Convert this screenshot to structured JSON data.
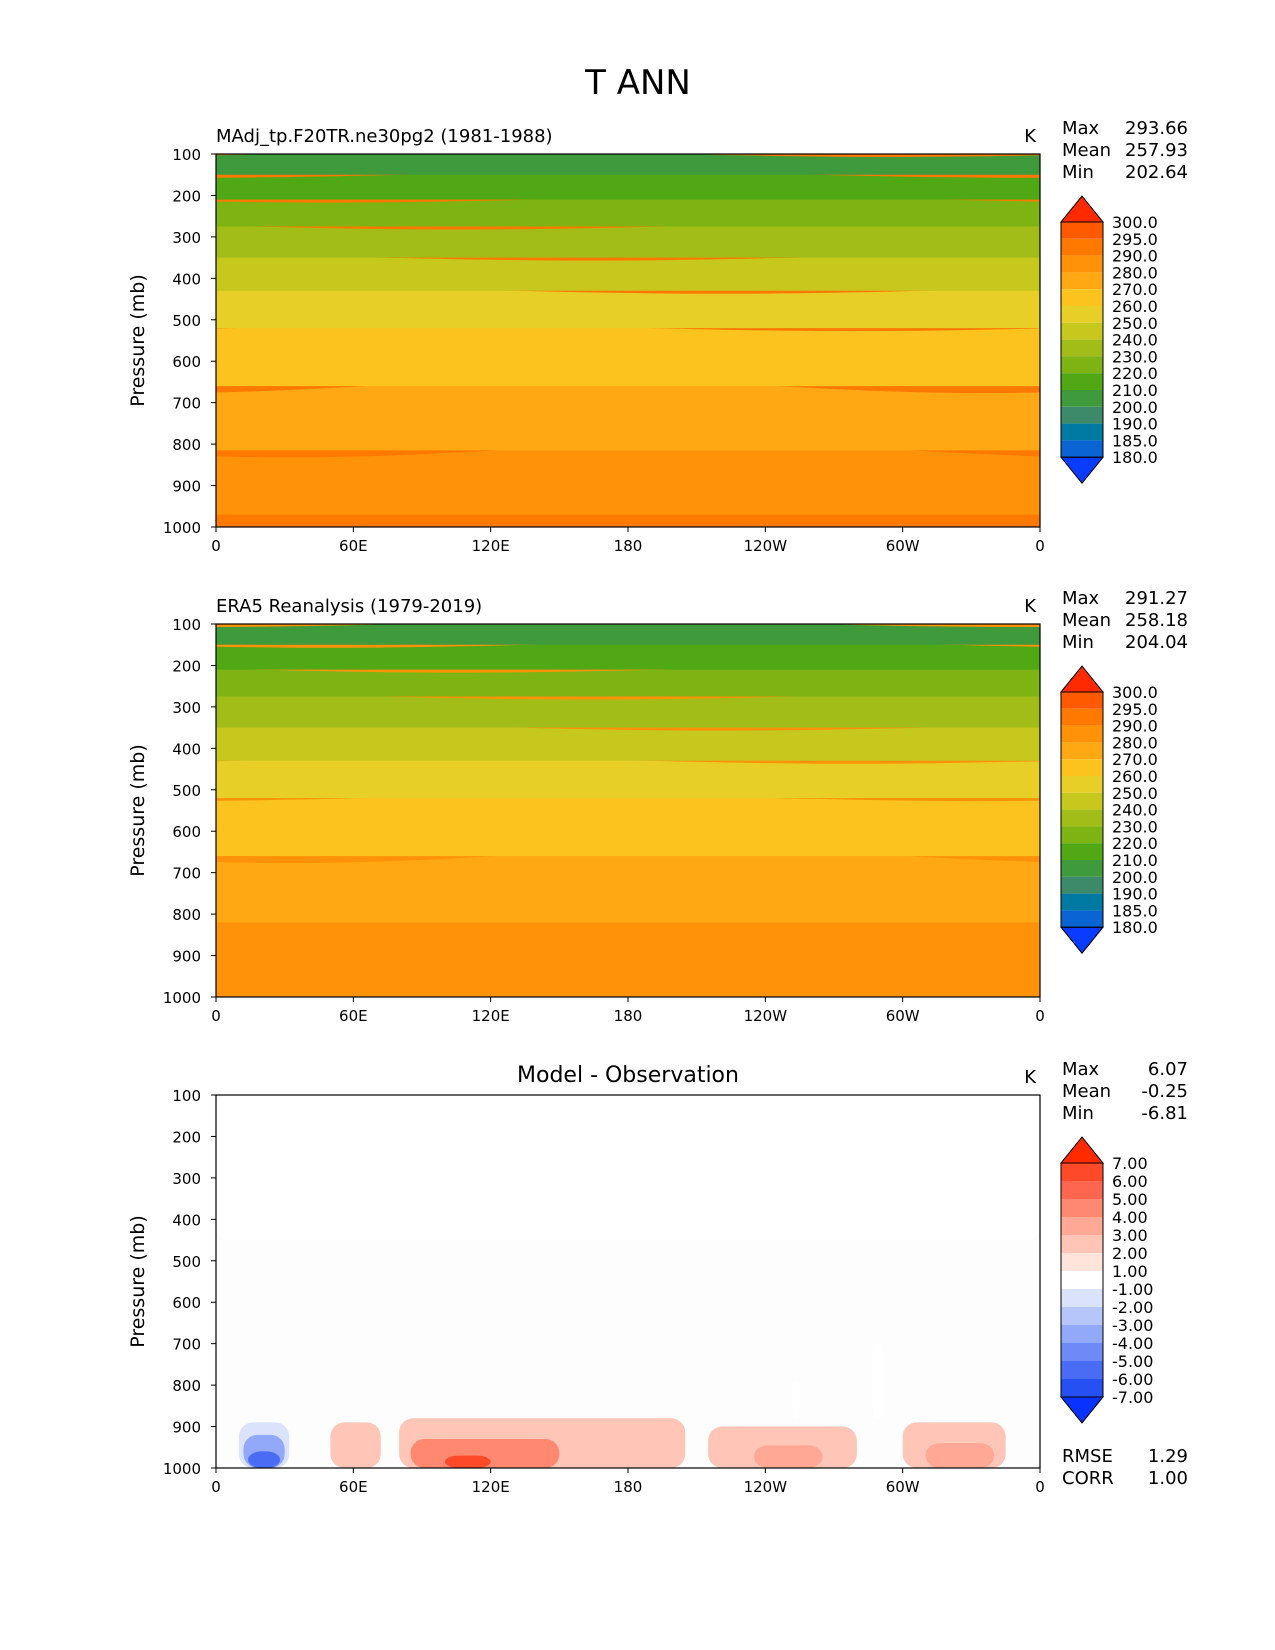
{
  "figure": {
    "title": "T ANN"
  },
  "chart_data": [
    {
      "type": "heatmap",
      "title": "MAdj_tp.F20TR.ne30pg2 (1981-1988)",
      "units": "K",
      "ylabel": "Pressure (mb)",
      "xlabel": "",
      "yticks": [
        "100",
        "200",
        "300",
        "400",
        "500",
        "600",
        "700",
        "800",
        "900",
        "1000"
      ],
      "xticks": [
        "0",
        "60E",
        "120E",
        "180",
        "120W",
        "60W",
        "0"
      ],
      "stats": [
        {
          "label": "Max",
          "value": "293.66"
        },
        {
          "label": "Mean",
          "value": "257.93"
        },
        {
          "label": "Min",
          "value": "202.64"
        }
      ],
      "colorbar": {
        "levels": [
          "300.0",
          "295.0",
          "290.0",
          "280.0",
          "270.0",
          "260.0",
          "250.0",
          "240.0",
          "230.0",
          "220.0",
          "210.0",
          "200.0",
          "190.0",
          "185.0",
          "180.0"
        ],
        "colors": [
          "#ff2a00",
          "#ff5a00",
          "#ff7800",
          "#ff9208",
          "#ffa814",
          "#fcc31e",
          "#e8cf28",
          "#c6c81e",
          "#a2bd18",
          "#7db414",
          "#4fa814",
          "#3f9a3c",
          "#3c8a6a",
          "#007aa0",
          "#0a64d2",
          "#0a3cff"
        ]
      },
      "bands": [
        {
          "from": 1000,
          "to": 970,
          "level": "290.0"
        },
        {
          "from": 970,
          "to": 815,
          "level": "280.0"
        },
        {
          "from": 815,
          "to": 660,
          "level": "270.0"
        },
        {
          "from": 660,
          "to": 520,
          "level": "260.0"
        },
        {
          "from": 520,
          "to": 430,
          "level": "250.0"
        },
        {
          "from": 430,
          "to": 350,
          "level": "240.0"
        },
        {
          "from": 350,
          "to": 275,
          "level": "230.0"
        },
        {
          "from": 275,
          "to": 210,
          "level": "220.0"
        },
        {
          "from": 210,
          "to": 150,
          "level": "210.0"
        },
        {
          "from": 150,
          "to": 100,
          "level": "200.0"
        }
      ]
    },
    {
      "type": "heatmap",
      "title": "ERA5 Reanalysis (1979-2019)",
      "units": "K",
      "ylabel": "Pressure (mb)",
      "xlabel": "",
      "yticks": [
        "100",
        "200",
        "300",
        "400",
        "500",
        "600",
        "700",
        "800",
        "900",
        "1000"
      ],
      "xticks": [
        "0",
        "60E",
        "120E",
        "180",
        "120W",
        "60W",
        "0"
      ],
      "stats": [
        {
          "label": "Max",
          "value": "291.27"
        },
        {
          "label": "Mean",
          "value": "258.18"
        },
        {
          "label": "Min",
          "value": "204.04"
        }
      ],
      "colorbar": {
        "levels": [
          "300.0",
          "295.0",
          "290.0",
          "280.0",
          "270.0",
          "260.0",
          "250.0",
          "240.0",
          "230.0",
          "220.0",
          "210.0",
          "200.0",
          "190.0",
          "185.0",
          "180.0"
        ],
        "colors": [
          "#ff2a00",
          "#ff5a00",
          "#ff7800",
          "#ff9208",
          "#ffa814",
          "#fcc31e",
          "#e8cf28",
          "#c6c81e",
          "#a2bd18",
          "#7db414",
          "#4fa814",
          "#3f9a3c",
          "#3c8a6a",
          "#007aa0",
          "#0a64d2",
          "#0a3cff"
        ]
      },
      "bands": [
        {
          "from": 1000,
          "to": 820,
          "level": "280.0"
        },
        {
          "from": 820,
          "to": 660,
          "level": "270.0"
        },
        {
          "from": 660,
          "to": 520,
          "level": "260.0"
        },
        {
          "from": 520,
          "to": 430,
          "level": "250.0"
        },
        {
          "from": 430,
          "to": 350,
          "level": "240.0"
        },
        {
          "from": 350,
          "to": 275,
          "level": "230.0"
        },
        {
          "from": 275,
          "to": 210,
          "level": "220.0"
        },
        {
          "from": 210,
          "to": 150,
          "level": "210.0"
        },
        {
          "from": 150,
          "to": 100,
          "level": "200.0"
        }
      ]
    },
    {
      "type": "heatmap",
      "title": "Model - Observation",
      "units": "K",
      "ylabel": "Pressure (mb)",
      "xlabel": "",
      "yticks": [
        "100",
        "200",
        "300",
        "400",
        "500",
        "600",
        "700",
        "800",
        "900",
        "1000"
      ],
      "xticks": [
        "0",
        "60E",
        "120E",
        "180",
        "120W",
        "60W",
        "0"
      ],
      "stats": [
        {
          "label": "Max",
          "value": "6.07"
        },
        {
          "label": "Mean",
          "value": "-0.25"
        },
        {
          "label": "Min",
          "value": "-6.81"
        }
      ],
      "extra_stats": [
        {
          "label": "RMSE",
          "value": "1.29"
        },
        {
          "label": "CORR",
          "value": "1.00"
        }
      ],
      "colorbar": {
        "levels": [
          "7.00",
          "6.00",
          "5.00",
          "4.00",
          "3.00",
          "2.00",
          "1.00",
          "-1.00",
          "-2.00",
          "-3.00",
          "-4.00",
          "-5.00",
          "-6.00",
          "-7.00"
        ],
        "colors": [
          "#ff2a00",
          "#ff4a2a",
          "#ff6650",
          "#ff8870",
          "#ffa896",
          "#ffc6b8",
          "#ffe4dc",
          "#ffffff",
          "#dae2fc",
          "#b6c6fa",
          "#92a8f8",
          "#6e8af6",
          "#4a6cf4",
          "#2650f2",
          "#0a32ff"
        ]
      },
      "regions": [
        {
          "level": "-1.00",
          "lon_start": 0,
          "lon_end": 360,
          "p_top": 100,
          "p_bottom": 450
        },
        {
          "level": "-2.00",
          "lon_start": 10,
          "lon_end": 32,
          "p_top": 890,
          "p_bottom": 1000
        },
        {
          "level": "-4.00",
          "lon_start": 12,
          "lon_end": 30,
          "p_top": 920,
          "p_bottom": 1000
        },
        {
          "level": "-6.00",
          "lon_start": 14,
          "lon_end": 28,
          "p_top": 960,
          "p_bottom": 1000
        },
        {
          "level": "-1.00",
          "lon_start": 252,
          "lon_end": 255,
          "p_top": 790,
          "p_bottom": 880
        },
        {
          "level": "-1.00",
          "lon_start": 287,
          "lon_end": 291,
          "p_top": 700,
          "p_bottom": 880
        },
        {
          "level": "2.00",
          "lon_start": 50,
          "lon_end": 72,
          "p_top": 890,
          "p_bottom": 1000
        },
        {
          "level": "2.00",
          "lon_start": 80,
          "lon_end": 205,
          "p_top": 880,
          "p_bottom": 1000
        },
        {
          "level": "4.00",
          "lon_start": 85,
          "lon_end": 150,
          "p_top": 930,
          "p_bottom": 1000
        },
        {
          "level": "6.00",
          "lon_start": 100,
          "lon_end": 120,
          "p_top": 970,
          "p_bottom": 1000
        },
        {
          "level": "2.00",
          "lon_start": 215,
          "lon_end": 280,
          "p_top": 900,
          "p_bottom": 1000
        },
        {
          "level": "3.00",
          "lon_start": 235,
          "lon_end": 265,
          "p_top": 945,
          "p_bottom": 1000
        },
        {
          "level": "2.00",
          "lon_start": 300,
          "lon_end": 345,
          "p_top": 890,
          "p_bottom": 1000
        },
        {
          "level": "3.00",
          "lon_start": 310,
          "lon_end": 340,
          "p_top": 940,
          "p_bottom": 1000
        }
      ]
    }
  ]
}
